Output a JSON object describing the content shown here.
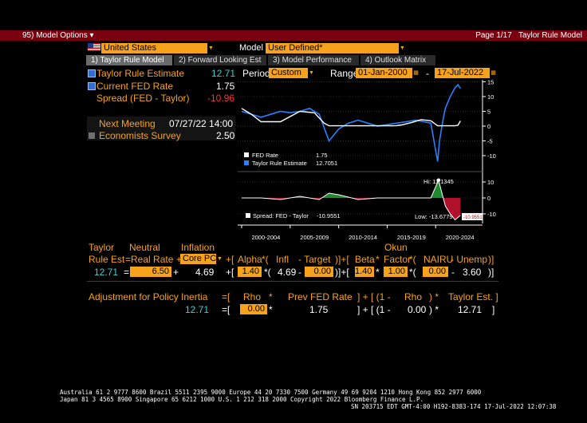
{
  "header": {
    "menu_label": "95) Model Options ▾",
    "page": "Page 1/17",
    "title": "Taylor Rule Model"
  },
  "controls": {
    "country": "United States",
    "model_label": "Model",
    "model_value": "User Defined*",
    "period_label": "Period",
    "period_value": "Custom",
    "range_label": "Range",
    "range_start": "01-Jan-2000",
    "range_dash": "-",
    "range_end": "17-Jul-2022"
  },
  "tabs": [
    {
      "label": "1) Taylor Rule Model",
      "active": true
    },
    {
      "label": "2) Forward Looking Est",
      "active": false
    },
    {
      "label": "3) Model Performance",
      "active": false
    },
    {
      "label": "4) Outlook Matrix",
      "active": false
    }
  ],
  "stats": {
    "taylor_label": "Taylor Rule Estimate",
    "taylor_value": "12.71",
    "fed_label": "Current FED Rate",
    "fed_value": "1.75",
    "spread_label": "Spread (FED - Taylor)",
    "spread_value": "-10.96",
    "meeting_label": "Next Meeting",
    "meeting_value": "07/27/22 14:00",
    "survey_label": "Economists Survey",
    "survey_value": "2.50"
  },
  "chart": {
    "legend_fed": "FED Rate",
    "legend_fed_value": "1.75",
    "legend_taylor": "Taylor Rule Estimate",
    "legend_taylor_value": "12.7051",
    "legend_spread": "Spread: FED - Taylor",
    "legend_spread_value": "-10.9551",
    "hi_label": "Hi: 11.1345",
    "low_label": "Low: -13.6779",
    "low_tag": "-10.9551",
    "top_ticks": [
      "15",
      "10",
      "5",
      "0",
      "-5",
      "-10"
    ],
    "bottom_ticks": [
      "10",
      "0",
      "-10"
    ],
    "x_ticks": [
      "2000-2004",
      "2005-2009",
      "2010-2014",
      "2015-2019",
      "2020-2024"
    ]
  },
  "chart_data": {
    "type": "line",
    "series": [
      {
        "name": "FED Rate",
        "x": [
          2000,
          2001,
          2002,
          2004,
          2006,
          2007.5,
          2008.5,
          2009,
          2015.9,
          2016.5,
          2017.5,
          2018.5,
          2019.5,
          2020.2,
          2022.0,
          2022.3,
          2022.55
        ],
        "values": [
          6.0,
          4.0,
          1.5,
          1.5,
          5.0,
          4.5,
          1.0,
          0.1,
          0.1,
          0.4,
          1.2,
          2.2,
          1.8,
          0.1,
          0.1,
          0.3,
          1.75
        ]
      },
      {
        "name": "Taylor Rule Estimate",
        "x": [
          2000,
          2001,
          2002,
          2003,
          2004,
          2005,
          2006,
          2007,
          2008,
          2009,
          2009.5,
          2010,
          2011,
          2012,
          2014,
          2016,
          2018,
          2019.5,
          2020.2,
          2020.4,
          2020.8,
          2021,
          2021.5,
          2022,
          2022.3,
          2022.55
        ],
        "values": [
          5,
          4,
          3,
          4,
          5,
          4.5,
          5,
          6,
          4,
          -5,
          -3,
          -1,
          1,
          2,
          0,
          1,
          2,
          1,
          -12,
          -5,
          3,
          6,
          10,
          13,
          14,
          12.71
        ]
      },
      {
        "name": "Spread: FED - Taylor",
        "x": [
          2000,
          2002,
          2004,
          2006,
          2008,
          2009,
          2010,
          2012,
          2014,
          2016,
          2018,
          2019.5,
          2020.3,
          2020.6,
          2021,
          2021.5,
          2022,
          2022.55
        ],
        "values": [
          0,
          0,
          -1,
          1,
          -1,
          3,
          2,
          -1,
          0,
          0,
          0,
          0,
          11.13,
          4,
          -5,
          -10,
          -13.68,
          -10.96
        ]
      }
    ],
    "ylim_top": [
      -15,
      15
    ],
    "ylim_bottom": [
      -15,
      12
    ]
  },
  "formula": {
    "h_taylor": "Taylor",
    "h_neutral": "Neutral",
    "h_inflation": "Inflation",
    "h_okun": "Okun",
    "rule_est": "Rule Est",
    "eq_real_rate": "=Real Rate +",
    "measure": "Core PCE",
    "plus_bracket": "+[",
    "alpha": "Alpha",
    "star1": "*(",
    "infl": "Infl",
    "minus_target": "- Target",
    "close1": ")]+[",
    "beta": "Beta",
    "star_factor": "*",
    "factor": "Factor",
    "star2": "*(",
    "nairu": "NAIRU",
    "minus_unemp": "- Unemp",
    "close2": ")]",
    "v_taylor": "12.71",
    "v_eq": "=",
    "v_real_rate": "6.50",
    "v_plus": "+",
    "v_inflation": "4.69",
    "v_bracket": "+[",
    "v_alpha": "1.40",
    "v_star1": "*(",
    "v_infl": "4.69",
    "v_minus": "-",
    "v_target": "0.00",
    "v_close1": ")]+[",
    "v_beta": "1.40",
    "v_star": "*",
    "v_factor": "1.00",
    "v_star2": "*(",
    "v_nairu": "0.00",
    "v_minus2": "-",
    "v_unemp": "3.60",
    "v_close2": ")]"
  },
  "inertia": {
    "label": "Adjustment for Policy Inertia",
    "eq": "=[",
    "rho": "Rho",
    "star": "*",
    "prev": "Prev FED Rate",
    "close": "] + [ (1 -",
    "rho2": "Rho",
    "close2": ") *",
    "taylor": "Taylor Est. ]",
    "v_result": "12.71",
    "v_eq": "=[",
    "v_rho": "0.00",
    "v_star": "*",
    "v_prev": "1.75",
    "v_close": "] + [ (1 -",
    "v_rho2": "0.00",
    "v_close2": ") *",
    "v_taylor": "12.71",
    "v_end": "]"
  },
  "footer": {
    "line1": "Australia 61 2 9777 8600 Brazil 5511 2395 9000 Europe 44 20 7330 7500 Germany 49 69 9204 1210 Hong Kong 852 2977 6000",
    "line2": "Japan 81 3 4565 8900      Singapore 65 6212 1000      U.S. 1 212 318 2000         Copyright 2022 Bloomberg Finance L.P.",
    "line3": "SN 203715 EDT  GMT-4:00 H192-8383-174 17-Jul-2022 12:07:38"
  }
}
